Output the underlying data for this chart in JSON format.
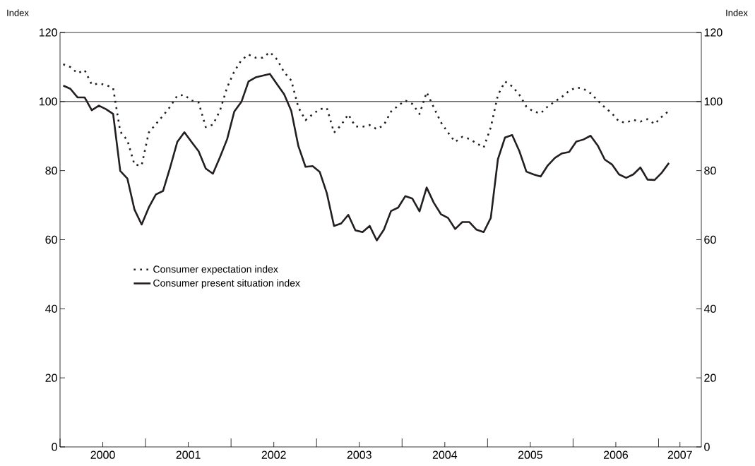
{
  "chart_data": {
    "type": "line",
    "ylabel": "Index",
    "y2label": "Index",
    "x": [
      "2000-01-15",
      "2000-02-15",
      "2000-03-15",
      "2000-04-15",
      "2000-05-15",
      "2000-06-15",
      "2000-07-15",
      "2000-08-15",
      "2000-09-15",
      "2000-10-15",
      "2000-11-15",
      "2000-12-15",
      "2001-01-15",
      "2001-02-15",
      "2001-03-15",
      "2001-04-15",
      "2001-05-15",
      "2001-06-15",
      "2001-07-15",
      "2001-08-15",
      "2001-09-15",
      "2001-10-15",
      "2001-11-15",
      "2001-12-15",
      "2002-01-15",
      "2002-02-15",
      "2002-03-15",
      "2002-04-15",
      "2002-05-15",
      "2002-06-15",
      "2002-07-15",
      "2002-08-15",
      "2002-09-15",
      "2002-10-15",
      "2002-11-15",
      "2002-12-15",
      "2003-01-15",
      "2003-02-15",
      "2003-03-15",
      "2003-04-15",
      "2003-05-15",
      "2003-06-15",
      "2003-07-15",
      "2003-08-15",
      "2003-09-15",
      "2003-10-15",
      "2003-11-15",
      "2003-12-15",
      "2004-01-15",
      "2004-02-15",
      "2004-03-15",
      "2004-04-15",
      "2004-05-15",
      "2004-06-15",
      "2004-07-15",
      "2004-08-15",
      "2004-09-15",
      "2004-10-15",
      "2004-11-15",
      "2004-12-15",
      "2005-01-15",
      "2005-02-15",
      "2005-03-15",
      "2005-04-15",
      "2005-05-15",
      "2005-06-15",
      "2005-07-15",
      "2005-08-15",
      "2005-09-15",
      "2005-10-15",
      "2005-11-15",
      "2005-12-15",
      "2006-01-15",
      "2006-02-15",
      "2006-03-15",
      "2006-04-15",
      "2006-05-15",
      "2006-06-15",
      "2006-07-15",
      "2006-08-15",
      "2006-09-15",
      "2006-10-15",
      "2006-11-15",
      "2006-12-15",
      "2007-01-15",
      "2007-02-15"
    ],
    "series": [
      {
        "name": "Consumer expectation index",
        "color": "#231f20",
        "line_style": "dotted",
        "values": [
          110.8,
          110.0,
          108.2,
          109.1,
          104.9,
          105.2,
          104.8,
          103.9,
          91.3,
          88.8,
          81.7,
          81.5,
          91.0,
          93.5,
          95.9,
          98.5,
          101.7,
          101.9,
          100.3,
          99.7,
          92.6,
          93.3,
          97.4,
          104.1,
          108.7,
          112.0,
          113.6,
          112.7,
          112.7,
          114.3,
          112.2,
          108.5,
          106.1,
          98.3,
          94.6,
          96.3,
          97.8,
          98.1,
          91.0,
          93.2,
          96.3,
          92.8,
          92.7,
          93.2,
          92.0,
          93.2,
          97.1,
          98.8,
          100.3,
          99.3,
          96.4,
          102.7,
          98.3,
          94.0,
          91.0,
          88.3,
          89.8,
          89.2,
          87.9,
          86.7,
          92.5,
          101.9,
          105.8,
          104.4,
          102.0,
          98.5,
          97.1,
          96.6,
          98.6,
          100.0,
          101.4,
          103.1,
          104.1,
          103.7,
          102.4,
          100.3,
          98.3,
          96.6,
          94.2,
          93.9,
          94.7,
          94.2,
          94.9,
          93.5,
          95.6,
          97.3
        ]
      },
      {
        "name": "Consumer present situation index",
        "color": "#231f20",
        "line_style": "solid",
        "values": [
          104.6,
          103.7,
          101.2,
          101.2,
          97.5,
          98.8,
          97.8,
          96.4,
          79.9,
          77.7,
          68.7,
          64.4,
          69.3,
          73.1,
          74.1,
          80.9,
          88.3,
          91.1,
          88.3,
          85.6,
          80.6,
          79.1,
          83.9,
          89.1,
          97.1,
          99.9,
          105.8,
          107.0,
          107.5,
          108.0,
          105.0,
          102.1,
          97.3,
          87.1,
          81.1,
          81.3,
          79.6,
          73.4,
          64.0,
          64.7,
          67.2,
          62.7,
          62.2,
          64.0,
          59.8,
          62.9,
          68.3,
          69.3,
          72.6,
          71.9,
          68.2,
          75.1,
          70.7,
          67.4,
          66.3,
          63.1,
          65.1,
          65.1,
          62.9,
          62.2,
          66.3,
          83.3,
          89.6,
          90.3,
          85.7,
          79.7,
          78.9,
          78.3,
          81.5,
          83.7,
          85.0,
          85.4,
          88.4,
          89.0,
          90.1,
          87.3,
          83.2,
          81.8,
          78.9,
          77.9,
          78.9,
          80.9,
          77.4,
          77.3,
          79.4,
          82.2
        ]
      }
    ],
    "xlim": [
      "2000-01-01",
      "2007-07-01"
    ],
    "xticks": [
      {
        "value": "2000-01-01",
        "label": null
      },
      {
        "value": "2000-07-01",
        "label": "2000"
      },
      {
        "value": "2001-01-01",
        "label": null
      },
      {
        "value": "2001-07-01",
        "label": "2001"
      },
      {
        "value": "2002-01-01",
        "label": null
      },
      {
        "value": "2002-07-01",
        "label": "2002"
      },
      {
        "value": "2003-01-01",
        "label": null
      },
      {
        "value": "2003-07-01",
        "label": "2003"
      },
      {
        "value": "2004-01-01",
        "label": null
      },
      {
        "value": "2004-07-01",
        "label": "2004"
      },
      {
        "value": "2005-01-01",
        "label": null
      },
      {
        "value": "2005-07-01",
        "label": "2005"
      },
      {
        "value": "2006-01-01",
        "label": null
      },
      {
        "value": "2006-07-01",
        "label": "2006"
      },
      {
        "value": "2007-01-01",
        "label": null
      },
      {
        "value": "2007-04-01",
        "label": "2007"
      }
    ],
    "ylim": [
      0,
      120
    ],
    "yticks": [
      0,
      20,
      40,
      60,
      80,
      100,
      120
    ],
    "y2lim": [
      0,
      120
    ],
    "y2ticks": [
      0,
      20,
      40,
      60,
      80,
      100,
      120
    ],
    "ref_lines": [
      {
        "axis": "y",
        "value": 100,
        "color": "#231f20"
      }
    ],
    "legend": "left"
  }
}
